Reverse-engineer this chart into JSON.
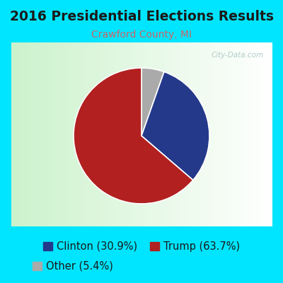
{
  "title": "2016 Presidential Elections Results",
  "subtitle": "Crawford County, MI",
  "title_color": "#1a1a1a",
  "title_fontsize": 13.5,
  "subtitle_fontsize": 10,
  "subtitle_color": "#cc6666",
  "slices": [
    30.9,
    63.7,
    5.4
  ],
  "labels": [
    "Clinton (30.9%)",
    "Trump (63.7%)",
    "Other (5.4%)"
  ],
  "colors": [
    "#24398a",
    "#b22020",
    "#aaaaaa"
  ],
  "background_outer": "#00e5ff",
  "watermark": "City-Data.com",
  "legend_fontsize": 10.5,
  "legend_text_color": "#1a1a1a"
}
